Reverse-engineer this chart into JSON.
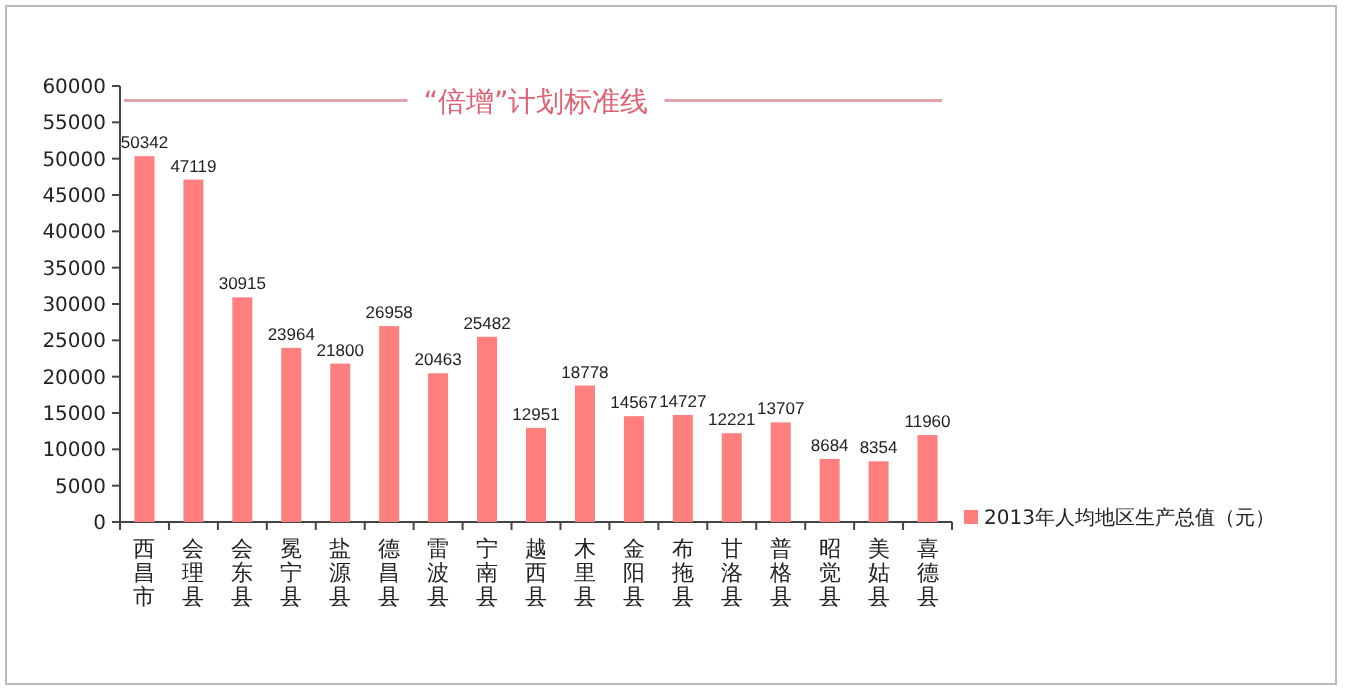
{
  "chart_data": {
    "type": "bar",
    "categories": [
      "西昌市",
      "会理县",
      "会东县",
      "冕宁县",
      "盐源县",
      "德昌县",
      "雷波县",
      "宁南县",
      "越西县",
      "木里县",
      "金阳县",
      "布拖县",
      "甘洛县",
      "普格县",
      "昭觉县",
      "美姑县",
      "喜德县"
    ],
    "series": [
      {
        "name": "2013年人均地区生产总值（元）",
        "color": "#ff7f7f",
        "values": [
          50342,
          47119,
          30915,
          23964,
          21800,
          26958,
          20463,
          25482,
          12951,
          18778,
          14567,
          14727,
          12221,
          13707,
          8684,
          8354,
          11960
        ]
      }
    ],
    "ylim": [
      0,
      60000
    ],
    "yticks": [
      0,
      5000,
      10000,
      15000,
      20000,
      25000,
      30000,
      35000,
      40000,
      45000,
      50000,
      55000,
      60000
    ],
    "ref_lines": [
      {
        "axis": "y",
        "value": 58000,
        "label": "“倍增”计划标准线",
        "color": "#e0a4ac"
      }
    ],
    "data_labels": true,
    "grid": false,
    "legend": "right"
  }
}
